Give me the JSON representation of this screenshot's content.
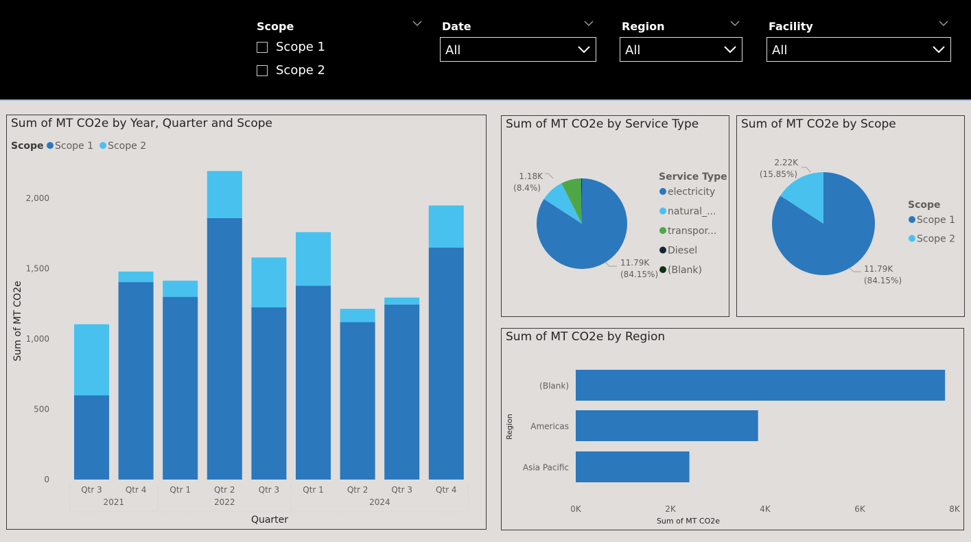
{
  "filters": {
    "scope": {
      "title": "Scope",
      "options": [
        "Scope 1",
        "Scope 2"
      ]
    },
    "date": {
      "title": "Date",
      "value": "All"
    },
    "region": {
      "title": "Region",
      "value": "All"
    },
    "facility": {
      "title": "Facility",
      "value": "All"
    }
  },
  "colors": {
    "scope1": "#2b78bd",
    "scope2": "#48c1ef",
    "transport": "#4ea646",
    "diesel": "#15253b",
    "blank": "#13320f",
    "header": "#000000",
    "canvas": "#e1dddb"
  },
  "icons": {
    "dropdown": "chevron-down-icon",
    "slicer_menu": "chevron-down-icon"
  },
  "chart_data": [
    {
      "type": "bar",
      "stacked": true,
      "title": "Sum of MT CO2e by Year, Quarter and Scope",
      "legend_title": "Scope",
      "legend_position": "top-left",
      "categories": [
        "Qtr 3",
        "Qtr 4",
        "Qtr 1",
        "Qtr 2",
        "Qtr 3",
        "Qtr 1",
        "Qtr 2",
        "Qtr 3",
        "Qtr 4"
      ],
      "groups": [
        {
          "label": "2021",
          "count": 2
        },
        {
          "label": "2022",
          "count": 3
        },
        {
          "label": "2024",
          "count": 4
        }
      ],
      "series": [
        {
          "name": "Scope 1",
          "values": [
            600,
            1405,
            1300,
            1860,
            1225,
            1380,
            1120,
            1245,
            1650
          ]
        },
        {
          "name": "Scope 2",
          "values": [
            505,
            75,
            115,
            335,
            355,
            380,
            95,
            50,
            300
          ]
        }
      ],
      "xlabel": "Quarter",
      "ylabel": "Sum of MT CO2e",
      "ylim": [
        0,
        2250
      ],
      "yticks": [
        0,
        500,
        1000,
        1500,
        2000
      ],
      "ytick_labels": [
        "0",
        "500",
        "1,000",
        "1,500",
        "2,000"
      ],
      "grid": false
    },
    {
      "type": "pie",
      "title": "Sum of MT CO2e by Service Type",
      "legend_title": "Service Type",
      "legend_position": "right",
      "labels": [
        "electricity",
        "natural_...",
        "transpor...",
        "Diesel",
        "(Blank)"
      ],
      "values": [
        11790,
        1180,
        1000,
        40,
        4
      ],
      "data_labels": [
        {
          "value": "11.79K",
          "percent": "(84.15%)"
        },
        {
          "value": "1.18K",
          "percent": "(8.4%)"
        }
      ]
    },
    {
      "type": "pie",
      "title": "Sum of MT CO2e by Scope",
      "legend_title": "Scope",
      "legend_position": "right",
      "labels": [
        "Scope 1",
        "Scope 2"
      ],
      "values": [
        11790,
        2220
      ],
      "data_labels": [
        {
          "value": "11.79K",
          "percent": "(84.15%)"
        },
        {
          "value": "2.22K",
          "percent": "(15.85%)"
        }
      ]
    },
    {
      "type": "bar",
      "orientation": "horizontal",
      "title": "Sum of MT CO2e by Region",
      "categories": [
        "(Blank)",
        "Americas",
        "Asia Pacific"
      ],
      "values": [
        7800,
        3850,
        2400
      ],
      "xlabel": "Sum of MT CO2e",
      "ylabel": "Region",
      "xlim": [
        0,
        8000
      ],
      "xticks": [
        0,
        2000,
        4000,
        6000,
        8000
      ],
      "xtick_labels": [
        "0K",
        "2K",
        "4K",
        "6K",
        "8K"
      ],
      "grid": false
    }
  ]
}
